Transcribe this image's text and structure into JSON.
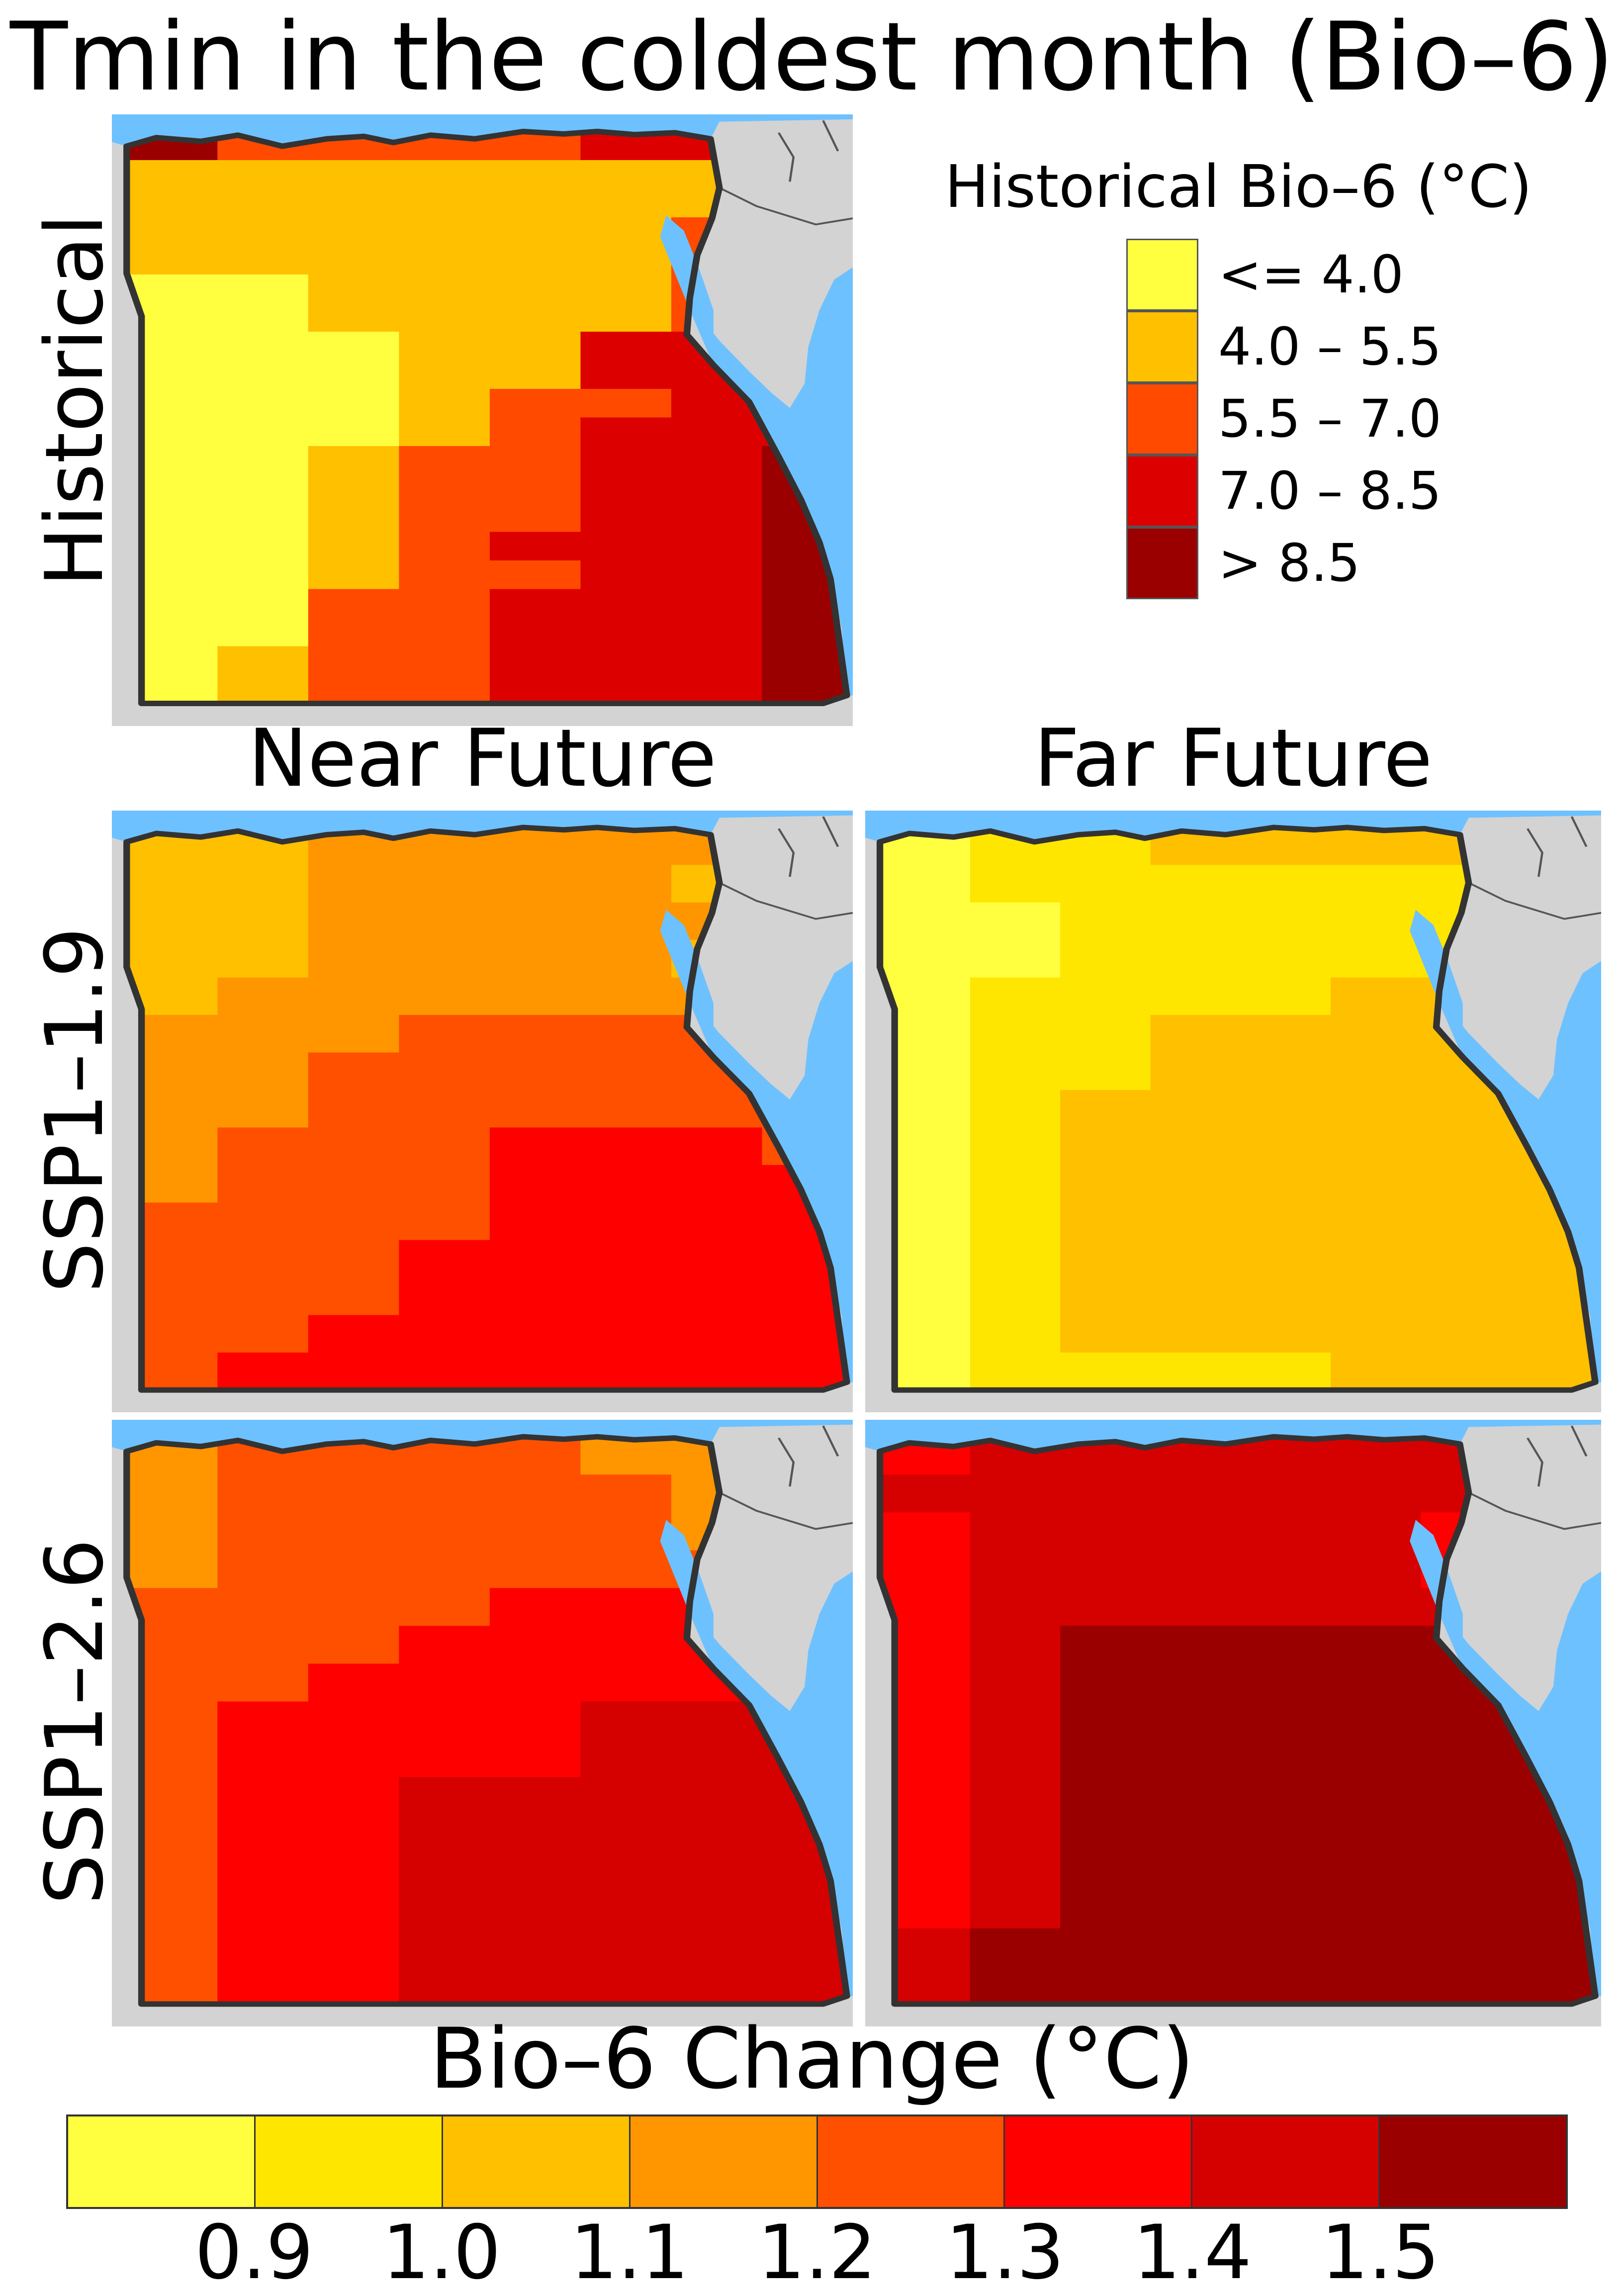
{
  "title": "Tmin in the coldest month (Bio–6)",
  "rows": {
    "historical": "Historical",
    "ssp119": "SSP1–1.9",
    "ssp126": "SSP1–2.6"
  },
  "columns": {
    "near": "Near Future",
    "far": "Far Future"
  },
  "historical_legend": {
    "title": "Historical Bio–6 (°C)",
    "classes": [
      {
        "label": "<= 4.0",
        "color": "#ffff40"
      },
      {
        "label": "4.0 – 5.5",
        "color": "#ffc000"
      },
      {
        "label": "5.5 – 7.0",
        "color": "#ff4a00"
      },
      {
        "label": "7.0 – 8.5",
        "color": "#dd0000"
      },
      {
        "label": "> 8.5",
        "color": "#9b0000"
      }
    ]
  },
  "change_colorbar": {
    "title": "Bio–6 Change (°C)",
    "colors": [
      "#ffff40",
      "#ffe600",
      "#ffc000",
      "#ff9600",
      "#ff5000",
      "#ff0000",
      "#d50000",
      "#9b0000"
    ],
    "ticks": [
      "0.9",
      "1.0",
      "1.1",
      "1.2",
      "1.3",
      "1.4",
      "1.5"
    ]
  },
  "map_colors": {
    "sea": "#6ec1ff",
    "land": "#d3d3d3",
    "border": "#333333",
    "boundaries": "#555555"
  },
  "panels": [
    {
      "id": "historical",
      "palette": "hist",
      "grid": [
        "H2222332",
        "11111112",
        "11111112",
        "11111122",
        "11111122",
        "00111122",
        "00111123",
        "00011333",
        "00011333",
        "00012233",
        "00012333",
        "00122334",
        "00122334",
        "00122334",
        "00123334",
        "00122334",
        "00223334",
        "00223334",
        "01223334",
        "01223334"
      ]
    },
    {
      "id": "ssp119-near",
      "palette": "change",
      "grid": [
        "22333333",
        "22333322",
        "22333333",
        "22333322",
        "23333333",
        "33344444",
        "33444444",
        "33444444",
        "34445554",
        "34445555",
        "44445555",
        "44455555",
        "44455555",
        "44555555",
        "45555555"
      ]
    },
    {
      "id": "ssp119-far",
      "palette": "change",
      "grid": [
        "01122221",
        "01111111",
        "00111111",
        "00111111",
        "01111221",
        "01122222",
        "01122222",
        "01222222",
        "01222222",
        "01222222",
        "01222222",
        "01222222",
        "01222222",
        "01222222",
        "01111222"
      ]
    },
    {
      "id": "ssp126-near",
      "palette": "change",
      "grid": [
        "34444333",
        "34444433",
        "34444433",
        "34444444",
        "44445555",
        "44455555",
        "44555555",
        "45555666",
        "45555666",
        "45566666",
        "45566666",
        "45566666",
        "45566666",
        "45566666",
        "45566666"
      ]
    },
    {
      "id": "ssp126-far",
      "palette": "change",
      "grid": [
        "56666666",
        "66666666",
        "56666655",
        "56666655",
        "56666666",
        "56777777",
        "56777777",
        "56777777",
        "56777777",
        "56777777",
        "56777777",
        "56777777",
        "56777777",
        "67777777",
        "67777777"
      ]
    }
  ]
}
